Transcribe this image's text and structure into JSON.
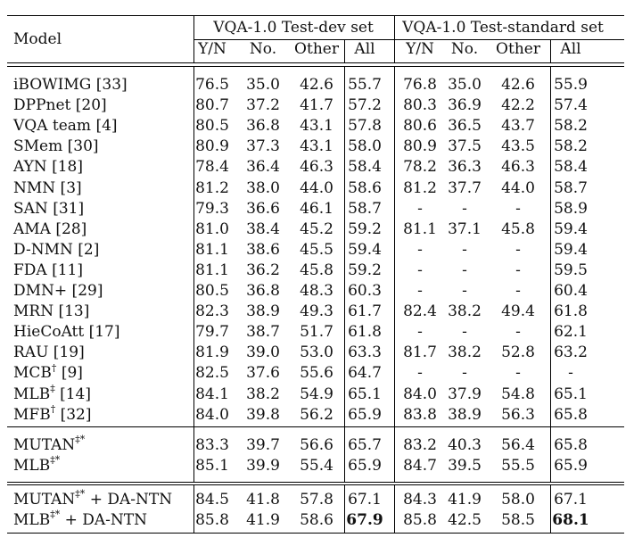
{
  "header": {
    "model": "Model",
    "group_dev": "VQA-1.0 Test-dev set",
    "group_std": "VQA-1.0 Test-standard set",
    "cols": [
      "Y/N",
      "No.",
      "Other",
      "All",
      "Y/N",
      "No.",
      "Other",
      "All"
    ]
  },
  "sections": [
    {
      "rows": [
        {
          "model": "iBOWIMG [33]",
          "vals": [
            "76.5",
            "35.0",
            "42.6",
            "55.7",
            "76.8",
            "35.0",
            "42.6",
            "55.9"
          ]
        },
        {
          "model": "DPPnet [20]",
          "vals": [
            "80.7",
            "37.2",
            "41.7",
            "57.2",
            "80.3",
            "36.9",
            "42.2",
            "57.4"
          ]
        },
        {
          "model": "VQA team [4]",
          "vals": [
            "80.5",
            "36.8",
            "43.1",
            "57.8",
            "80.6",
            "36.5",
            "43.7",
            "58.2"
          ]
        },
        {
          "model": "SMem [30]",
          "vals": [
            "80.9",
            "37.3",
            "43.1",
            "58.0",
            "80.9",
            "37.5",
            "43.5",
            "58.2"
          ]
        },
        {
          "model": "AYN [18]",
          "vals": [
            "78.4",
            "36.4",
            "46.3",
            "58.4",
            "78.2",
            "36.3",
            "46.3",
            "58.4"
          ]
        },
        {
          "model": "NMN [3]",
          "vals": [
            "81.2",
            "38.0",
            "44.0",
            "58.6",
            "81.2",
            "37.7",
            "44.0",
            "58.7"
          ]
        },
        {
          "model": "SAN [31]",
          "vals": [
            "79.3",
            "36.6",
            "46.1",
            "58.7",
            "-",
            "-",
            "-",
            "58.9"
          ]
        },
        {
          "model": "AMA [28]",
          "vals": [
            "81.0",
            "38.4",
            "45.2",
            "59.2",
            "81.1",
            "37.1",
            "45.8",
            "59.4"
          ]
        },
        {
          "model": "D-NMN [2]",
          "vals": [
            "81.1",
            "38.6",
            "45.5",
            "59.4",
            "-",
            "-",
            "-",
            "59.4"
          ]
        },
        {
          "model": "FDA [11]",
          "vals": [
            "81.1",
            "36.2",
            "45.8",
            "59.2",
            "-",
            "-",
            "-",
            "59.5"
          ]
        },
        {
          "model": "DMN+ [29]",
          "vals": [
            "80.5",
            "36.8",
            "48.3",
            "60.3",
            "-",
            "-",
            "-",
            "60.4"
          ]
        },
        {
          "model": "MRN [13]",
          "vals": [
            "82.3",
            "38.9",
            "49.3",
            "61.7",
            "82.4",
            "38.2",
            "49.4",
            "61.8"
          ]
        },
        {
          "model": "HieCoAtt [17]",
          "vals": [
            "79.7",
            "38.7",
            "51.7",
            "61.8",
            "-",
            "-",
            "-",
            "62.1"
          ]
        },
        {
          "model": "RAU [19]",
          "vals": [
            "81.9",
            "39.0",
            "53.0",
            "63.3",
            "81.7",
            "38.2",
            "52.8",
            "63.2"
          ]
        },
        {
          "model": "MCB",
          "sup": "†",
          "suffix": " [9]",
          "vals": [
            "82.5",
            "37.6",
            "55.6",
            "64.7",
            "-",
            "-",
            "-",
            "-"
          ]
        },
        {
          "model": "MLB",
          "sup": "‡",
          "suffix": " [14]",
          "vals": [
            "84.1",
            "38.2",
            "54.9",
            "65.1",
            "84.0",
            "37.9",
            "54.8",
            "65.1"
          ]
        },
        {
          "model": "MFB",
          "sup": "†",
          "suffix": " [32]",
          "vals": [
            "84.0",
            "39.8",
            "56.2",
            "65.9",
            "83.8",
            "38.9",
            "56.3",
            "65.8"
          ]
        }
      ]
    },
    {
      "rows": [
        {
          "model": "MUTAN",
          "sup": "‡*",
          "suffix": "",
          "vals": [
            "83.3",
            "39.7",
            "56.6",
            "65.7",
            "83.2",
            "40.3",
            "56.4",
            "65.8"
          ]
        },
        {
          "model": "MLB",
          "sup": "‡*",
          "suffix": "",
          "vals": [
            "85.1",
            "39.9",
            "55.4",
            "65.9",
            "84.7",
            "39.5",
            "55.5",
            "65.9"
          ]
        }
      ]
    },
    {
      "rows": [
        {
          "model": "MUTAN",
          "sup": "‡*",
          "suffix": " + DA-NTN",
          "vals": [
            "84.5",
            "41.8",
            "57.8",
            "67.1",
            "84.3",
            "41.9",
            "58.0",
            "67.1"
          ]
        },
        {
          "model": "MLB",
          "sup": "‡*",
          "suffix": " + DA-NTN",
          "vals": [
            "85.8",
            "41.9",
            "58.6",
            "67.9",
            "85.8",
            "42.5",
            "58.5",
            "68.1"
          ],
          "bold": [
            3,
            7
          ]
        }
      ]
    }
  ]
}
